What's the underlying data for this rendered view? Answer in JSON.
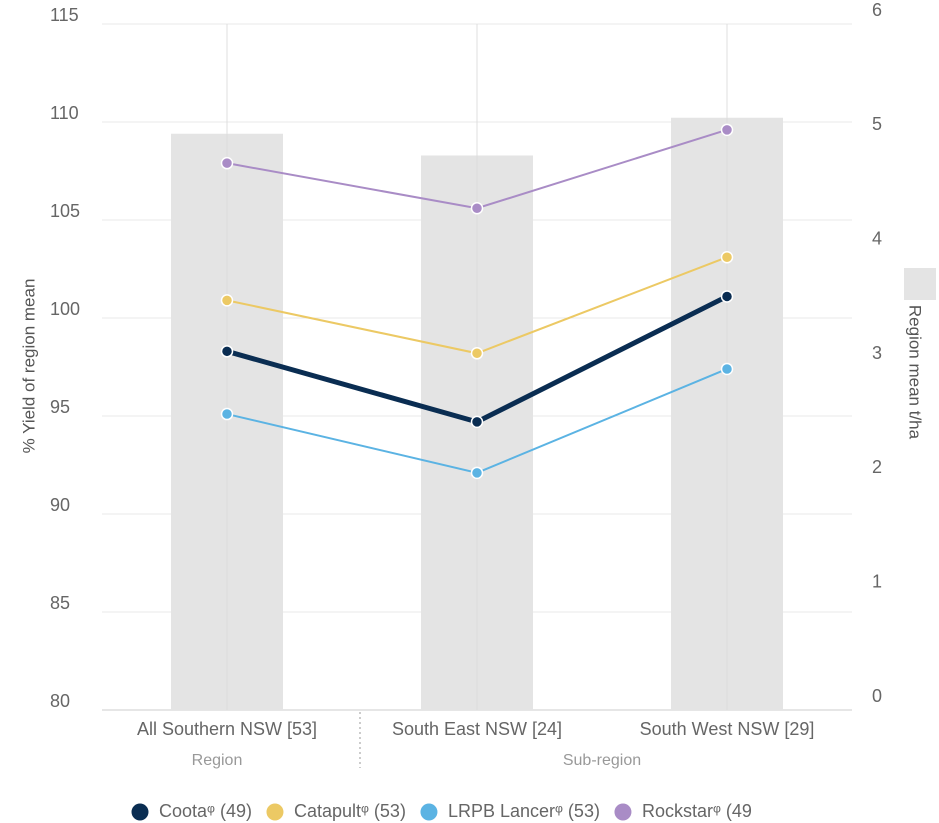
{
  "chart_data": {
    "type": "combo",
    "categories": [
      "All Southern NSW [53]",
      "South East NSW [24]",
      "South West NSW [29]"
    ],
    "group_labels": [
      "Region",
      "Sub-region"
    ],
    "ylabel": "% Yield of region mean",
    "y2label": "Region mean t/ha",
    "ylim": [
      80,
      115
    ],
    "yticks": [
      80,
      85,
      90,
      95,
      100,
      105,
      110,
      115
    ],
    "y2lim": [
      0,
      6
    ],
    "y2ticks": [
      0,
      1,
      2,
      3,
      4,
      5,
      6
    ],
    "grid": true,
    "bars": {
      "name": "Region mean t/ha",
      "color": "#e4e4e4",
      "axis": "y2",
      "values": [
        5.04,
        4.85,
        5.18
      ]
    },
    "series": [
      {
        "name": "Cootaᵠ (49)",
        "color": "#0a2d52",
        "values": [
          98.3,
          94.7,
          101.1
        ]
      },
      {
        "name": "Catapultᵠ (53)",
        "color": "#ecc964",
        "values": [
          100.9,
          98.2,
          103.1
        ]
      },
      {
        "name": "LRPB Lancerᵠ (53)",
        "color": "#5bb3e3",
        "values": [
          95.1,
          92.1,
          97.4
        ]
      },
      {
        "name": "Rockstarᵠ (49",
        "color": "#a98cc6",
        "values": [
          107.9,
          105.6,
          109.6
        ]
      }
    ]
  }
}
